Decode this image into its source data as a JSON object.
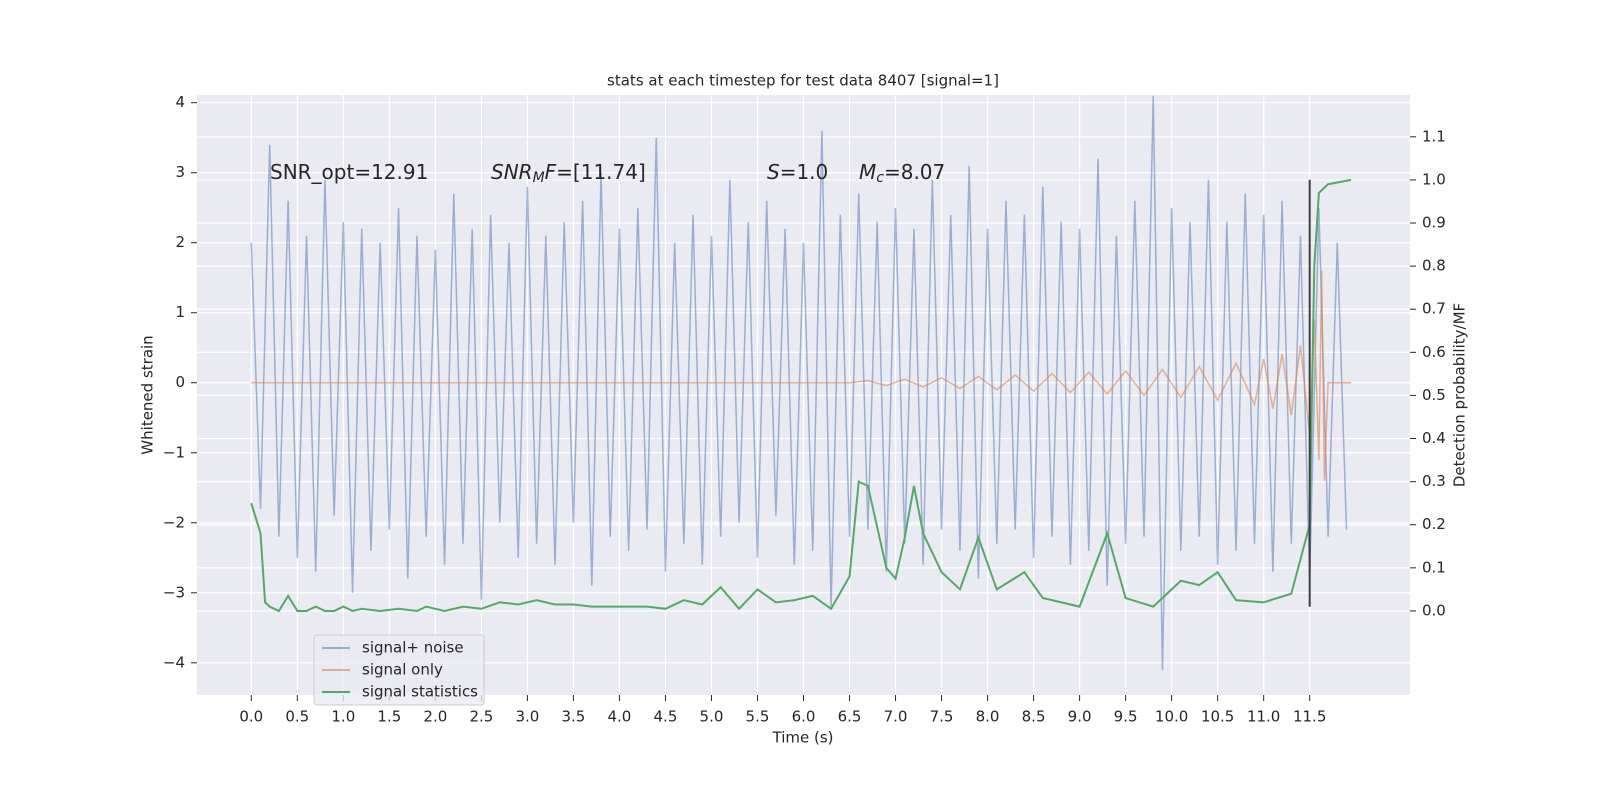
{
  "chart_data": {
    "type": "line",
    "title": "stats at each timestep for test data 8407 [signal=1]",
    "x_label": "Time (s)",
    "y_label": "Whitened strain",
    "y2_label": "Detection probability/MF",
    "grid": true,
    "xlim": [
      -0.59,
      12.59
    ],
    "ylim": [
      -4.46,
      4.11
    ],
    "y2lim": [
      -0.195,
      1.197
    ],
    "xticks": [
      {
        "value": 0,
        "label": "0.0"
      },
      {
        "value": 0.5,
        "label": "0.5"
      },
      {
        "value": 1,
        "label": "1.0"
      },
      {
        "value": 1.5,
        "label": "1.5"
      },
      {
        "value": 2,
        "label": "2.0"
      },
      {
        "value": 2.5,
        "label": "2.5"
      },
      {
        "value": 3,
        "label": "3.0"
      },
      {
        "value": 3.5,
        "label": "3.5"
      },
      {
        "value": 4,
        "label": "4.0"
      },
      {
        "value": 4.5,
        "label": "4.5"
      },
      {
        "value": 5,
        "label": "5.0"
      },
      {
        "value": 5.5,
        "label": "5.5"
      },
      {
        "value": 6,
        "label": "6.0"
      },
      {
        "value": 6.5,
        "label": "6.5"
      },
      {
        "value": 7,
        "label": "7.0"
      },
      {
        "value": 7.5,
        "label": "7.5"
      },
      {
        "value": 8,
        "label": "8.0"
      },
      {
        "value": 8.5,
        "label": "8.5"
      },
      {
        "value": 9,
        "label": "9.0"
      },
      {
        "value": 9.5,
        "label": "9.5"
      },
      {
        "value": 10,
        "label": "10.0"
      },
      {
        "value": 10.5,
        "label": "10.5"
      },
      {
        "value": 11,
        "label": "11.0"
      },
      {
        "value": 11.5,
        "label": "11.5"
      }
    ],
    "yticks": [
      {
        "value": -4,
        "label": "−4"
      },
      {
        "value": -3,
        "label": "−3"
      },
      {
        "value": -2,
        "label": "−2"
      },
      {
        "value": -1,
        "label": "−1"
      },
      0,
      1,
      2,
      3,
      4
    ],
    "y2ticks": [
      {
        "value": 0,
        "label": "0.0"
      },
      {
        "value": 0.1,
        "label": "0.1"
      },
      {
        "value": 0.2,
        "label": "0.2"
      },
      {
        "value": 0.3,
        "label": "0.3"
      },
      {
        "value": 0.4,
        "label": "0.4"
      },
      {
        "value": 0.5,
        "label": "0.5"
      },
      {
        "value": 0.6,
        "label": "0.6"
      },
      {
        "value": 0.7,
        "label": "0.7"
      },
      {
        "value": 0.8,
        "label": "0.8"
      },
      {
        "value": 0.9,
        "label": "0.9"
      },
      {
        "value": 1.0,
        "label": "1.0"
      },
      {
        "value": 1.1,
        "label": "1.1"
      }
    ],
    "annotations": [
      [
        "SNR_opt=12.91"
      ],
      [
        "SNR",
        "M",
        "F",
        "=[11.74]"
      ],
      [
        "S",
        "=1.0"
      ],
      [
        "M",
        "c",
        "=8.07"
      ]
    ],
    "vline": {
      "x": 11.5,
      "y": [
        -3.2,
        2.9
      ],
      "color": "#404040"
    },
    "legend": "lower left",
    "series": [
      {
        "name": "signal+ noise",
        "color": "#4c72b0",
        "opacity": 0.5,
        "x": [
          0,
          0.1,
          0.2,
          0.3,
          0.4,
          0.5,
          0.6,
          0.7,
          0.8,
          0.9,
          1,
          1.1,
          1.2,
          1.3,
          1.4,
          1.5,
          1.6,
          1.7,
          1.8,
          1.9,
          2,
          2.1,
          2.2,
          2.3,
          2.4,
          2.5,
          2.6,
          2.7,
          2.8,
          2.9,
          3,
          3.1,
          3.2,
          3.3,
          3.4,
          3.5,
          3.6,
          3.7,
          3.8,
          3.9,
          4,
          4.1,
          4.2,
          4.3,
          4.4,
          4.5,
          4.6,
          4.7,
          4.8,
          4.9,
          5,
          5.1,
          5.2,
          5.3,
          5.4,
          5.5,
          5.6,
          5.7,
          5.8,
          5.9,
          6,
          6.1,
          6.2,
          6.3,
          6.4,
          6.5,
          6.6,
          6.7,
          6.8,
          6.9,
          7,
          7.1,
          7.2,
          7.3,
          7.4,
          7.5,
          7.6,
          7.7,
          7.8,
          7.9,
          8,
          8.1,
          8.2,
          8.3,
          8.4,
          8.5,
          8.6,
          8.7,
          8.8,
          8.9,
          9,
          9.1,
          9.2,
          9.3,
          9.4,
          9.5,
          9.6,
          9.7,
          9.8,
          9.9,
          10,
          10.1,
          10.2,
          10.3,
          10.4,
          10.5,
          10.6,
          10.7,
          10.8,
          10.9,
          11,
          11.1,
          11.2,
          11.3,
          11.4,
          11.5,
          11.6,
          11.7,
          11.8,
          11.9
        ],
        "values": [
          2.0,
          -1.8,
          3.4,
          -2.2,
          2.6,
          -2.5,
          2.1,
          -2.7,
          2.9,
          -1.9,
          2.3,
          -3.0,
          2.2,
          -2.4,
          2.0,
          -2.1,
          2.5,
          -2.8,
          2.1,
          -2.2,
          1.9,
          -2.6,
          2.7,
          -2.3,
          2.2,
          -3.1,
          2.4,
          -2.0,
          2.0,
          -2.5,
          2.8,
          -2.3,
          2.1,
          -2.6,
          2.3,
          -2.0,
          2.6,
          -2.9,
          3.0,
          -2.2,
          2.2,
          -2.4,
          2.5,
          -2.1,
          3.5,
          -2.7,
          2.0,
          -2.3,
          2.4,
          -2.6,
          2.1,
          -2.2,
          2.9,
          -2.0,
          2.3,
          -2.5,
          2.6,
          -1.9,
          2.2,
          -2.6,
          2.0,
          -2.4,
          3.6,
          -3.2,
          2.4,
          -2.2,
          2.7,
          -2.1,
          2.3,
          -2.7,
          2.5,
          -2.3,
          2.2,
          -2.6,
          2.9,
          -2.1,
          2.4,
          -2.4,
          3.1,
          -2.8,
          2.2,
          -2.3,
          2.6,
          -2.1,
          2.4,
          -2.5,
          2.8,
          -2.2,
          2.3,
          -2.6,
          2.2,
          -2.4,
          3.2,
          -2.9,
          2.1,
          -2.3,
          2.6,
          -2.2,
          4.1,
          -4.1,
          2.5,
          -2.4,
          2.3,
          -2.2,
          2.9,
          -2.6,
          2.3,
          -2.4,
          2.7,
          -2.3,
          2.4,
          -2.7,
          2.6,
          -2.3,
          2.1,
          -2.8,
          2.5,
          -2.2,
          2.0,
          -2.1
        ]
      },
      {
        "name": "signal only",
        "color": "#dd8452",
        "opacity": 0.6,
        "x": [
          0,
          6.5,
          6.7,
          6.9,
          7.1,
          7.3,
          7.5,
          7.7,
          7.9,
          8.1,
          8.3,
          8.5,
          8.7,
          8.9,
          9.1,
          9.3,
          9.5,
          9.7,
          9.9,
          10.1,
          10.3,
          10.5,
          10.7,
          10.9,
          11.0,
          11.1,
          11.2,
          11.3,
          11.4,
          11.5,
          11.55,
          11.6,
          11.63,
          11.66,
          11.7,
          11.95
        ],
        "values": [
          0,
          0,
          0.03,
          -0.04,
          0.05,
          -0.06,
          0.07,
          -0.08,
          0.09,
          -0.1,
          0.11,
          -0.12,
          0.13,
          -0.14,
          0.15,
          -0.16,
          0.17,
          -0.18,
          0.19,
          -0.21,
          0.23,
          -0.25,
          0.28,
          -0.31,
          0.34,
          -0.37,
          0.41,
          -0.46,
          0.53,
          -0.75,
          0.9,
          -1.1,
          1.6,
          -1.4,
          0,
          0
        ]
      },
      {
        "name": "signal statistics",
        "color": "#55a868",
        "opacity": 1,
        "axis": "y2",
        "x": [
          0,
          0.1,
          0.15,
          0.2,
          0.3,
          0.4,
          0.5,
          0.6,
          0.7,
          0.8,
          0.9,
          1.0,
          1.1,
          1.2,
          1.4,
          1.6,
          1.8,
          1.9,
          2.1,
          2.3,
          2.5,
          2.7,
          2.9,
          3.1,
          3.3,
          3.5,
          3.7,
          4.0,
          4.3,
          4.5,
          4.7,
          4.9,
          5.1,
          5.3,
          5.5,
          5.7,
          5.9,
          6.1,
          6.3,
          6.5,
          6.6,
          6.7,
          6.9,
          7.0,
          7.1,
          7.2,
          7.3,
          7.5,
          7.7,
          7.9,
          8.1,
          8.4,
          8.6,
          9.0,
          9.3,
          9.5,
          9.8,
          10.1,
          10.3,
          10.5,
          10.7,
          11.0,
          11.3,
          11.5,
          11.55,
          11.6,
          11.7,
          11.95
        ],
        "values": [
          0.25,
          0.18,
          0.02,
          0.01,
          0.0,
          0.035,
          0.0,
          0.0,
          0.01,
          0.0,
          0.0,
          0.01,
          0.0,
          0.005,
          0.0,
          0.005,
          0.0,
          0.01,
          0.0,
          0.01,
          0.005,
          0.02,
          0.015,
          0.025,
          0.015,
          0.015,
          0.01,
          0.01,
          0.01,
          0.005,
          0.025,
          0.015,
          0.055,
          0.005,
          0.05,
          0.02,
          0.025,
          0.035,
          0.005,
          0.08,
          0.3,
          0.29,
          0.1,
          0.075,
          0.17,
          0.29,
          0.18,
          0.09,
          0.05,
          0.17,
          0.05,
          0.09,
          0.03,
          0.01,
          0.18,
          0.03,
          0.01,
          0.07,
          0.06,
          0.09,
          0.025,
          0.02,
          0.04,
          0.2,
          0.8,
          0.97,
          0.99,
          1.0
        ]
      }
    ]
  }
}
